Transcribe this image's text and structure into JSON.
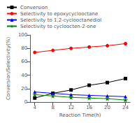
{
  "chart_data": {
    "type": "line",
    "x": [
      4,
      8,
      12,
      16,
      20,
      24
    ],
    "series": [
      {
        "name": "Conversion",
        "color": "black",
        "marker": "square",
        "values": [
          6,
          13,
          18,
          25,
          29,
          35
        ]
      },
      {
        "name": "Selectivity to epoxycyclooctane",
        "color": "red",
        "marker": "circle",
        "values": [
          74,
          77,
          80,
          82,
          84,
          87
        ]
      },
      {
        "name": "Selectivity to 1,2-cyclooctanediol",
        "color": "blue",
        "marker": "triangle",
        "values": [
          15,
          13,
          11,
          10,
          9,
          8
        ]
      },
      {
        "name": "Selectivity to cycloocten-2-one",
        "color": "green",
        "marker": "star",
        "values": [
          11,
          9,
          7,
          6,
          5,
          3
        ]
      }
    ],
    "xlabel": "Reaction Time(h)",
    "ylabel": "Conversion/Selectivity(%)",
    "xlim": [
      3,
      25
    ],
    "xticks": [
      4,
      8,
      12,
      16,
      20,
      24
    ],
    "ylim": [
      0,
      100
    ],
    "yticks": [
      0,
      20,
      40,
      60,
      80,
      100
    ],
    "line_style": "solid",
    "legend": "upper left",
    "grid": false
  }
}
